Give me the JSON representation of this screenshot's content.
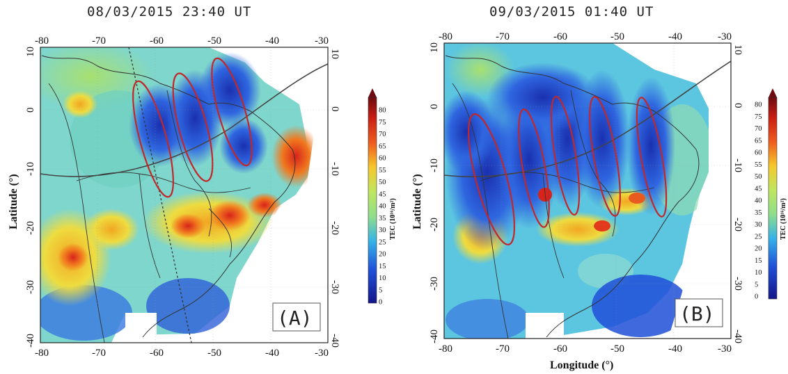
{
  "panels": [
    {
      "id": "A",
      "title": "08/03/2015 23:40 UT",
      "tag": "(A)",
      "xlabel": "",
      "ylabel": "Latitude (°)",
      "arcs": 3
    },
    {
      "id": "B",
      "title": "09/03/2015 01:40 UT",
      "tag": "(B)",
      "xlabel": "Longitude (°)",
      "ylabel": "Latitude (°)",
      "arcs": 5
    }
  ],
  "axes": {
    "lon_ticks": [
      "-80",
      "-70",
      "-60",
      "-50",
      "-40",
      "-30"
    ],
    "lat_ticks": [
      "10",
      "0",
      "-10",
      "-20",
      "-30",
      "-40"
    ]
  },
  "colorbar": {
    "title": "TEC (10¹⁶/m²)",
    "ticks": [
      "80",
      "75",
      "70",
      "65",
      "60",
      "55",
      "50",
      "45",
      "40",
      "35",
      "30",
      "25",
      "20",
      "15",
      "10",
      "5",
      "0"
    ],
    "colors": [
      "#6e0b10",
      "#9c1410",
      "#c81e12",
      "#e2331a",
      "#ee5a1f",
      "#f4821e",
      "#f7a425",
      "#f6c82c",
      "#e8e23a",
      "#bfe660",
      "#8fde8c",
      "#5cd0c6",
      "#35b2e8",
      "#2a7de8",
      "#1f4fd8",
      "#1a2fb8",
      "#13168a"
    ]
  },
  "colors": {
    "ellipse": "#c0282c",
    "map_low": "#2a5ad8",
    "map_mid": "#8edbd0",
    "map_high": "#e43a1c"
  }
}
